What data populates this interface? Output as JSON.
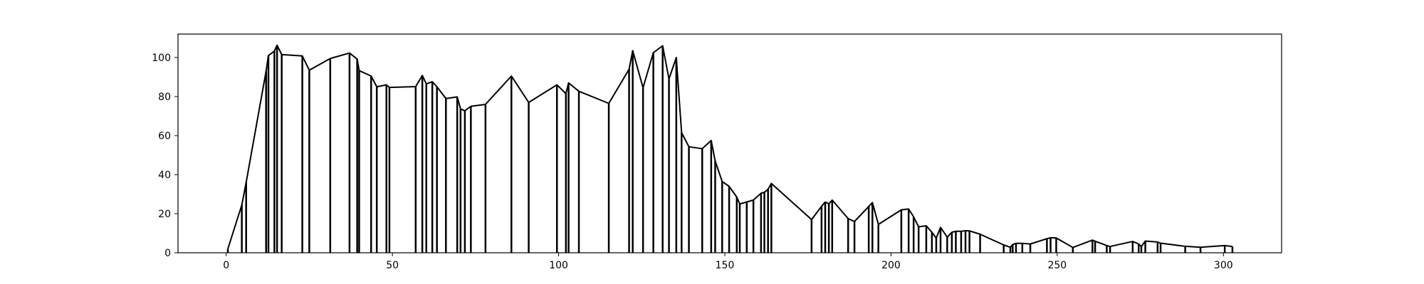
{
  "chart_data": {
    "type": "line",
    "title": "",
    "xlabel": "",
    "ylabel": "",
    "xlim": [
      -14.5,
      317.5
    ],
    "ylim": [
      0,
      112
    ],
    "x_ticks": [
      0,
      50,
      100,
      150,
      200,
      250,
      300
    ],
    "x_tick_labels": [
      "0",
      "50",
      "100",
      "150",
      "200",
      "250",
      "300"
    ],
    "y_ticks": [
      0,
      20,
      40,
      60,
      80,
      100
    ],
    "y_tick_labels": [
      "0",
      "20",
      "40",
      "60",
      "80",
      "100"
    ],
    "grid": false,
    "legend": false,
    "style": "line with vertical drop lines to zero at each point",
    "color": "#000000",
    "x": [
      0.5,
      4.7,
      6,
      12,
      12.7,
      14.5,
      15.3,
      16.7,
      22.9,
      25,
      31.3,
      37.1,
      39.4,
      40,
      43.6,
      45.3,
      48.2,
      49.1,
      57,
      59,
      60.2,
      62,
      63.4,
      66.1,
      69.5,
      70.5,
      71.8,
      73.6,
      78,
      85.8,
      91,
      99.5,
      102.2,
      103,
      106.1,
      115.1,
      121.2,
      122.3,
      125.4,
      128.5,
      131.3,
      133.2,
      135.4,
      137,
      139.2,
      143.2,
      145.9,
      147.1,
      149.2,
      151.3,
      153.6,
      154.5,
      156.6,
      158.6,
      160.9,
      161.9,
      163,
      164,
      176.1,
      179.1,
      180.2,
      181.3,
      182.3,
      187.1,
      189,
      193.3,
      194.4,
      196.2,
      203.1,
      205.3,
      206.8,
      208.3,
      210.6,
      212.3,
      213.6,
      214.9,
      216.9,
      218.3,
      219.5,
      221.1,
      222.4,
      223.6,
      226.8,
      233.9,
      235.9,
      236.6,
      237.6,
      239.5,
      241.9,
      246.9,
      248,
      249.7,
      254.7,
      260.6,
      261.4,
      264.9,
      265.9,
      272.7,
      274.5,
      275.3,
      276.5,
      280.2,
      281.1,
      288.5,
      293.1,
      300.4,
      302.7
    ],
    "y": [
      2,
      24.5,
      36,
      93,
      101,
      103.3,
      106.3,
      101.5,
      100.8,
      93.5,
      99.5,
      102.3,
      99.2,
      93.3,
      90.5,
      85,
      86,
      84.7,
      85.1,
      90.8,
      86.5,
      87.6,
      85,
      79,
      79.8,
      73.7,
      72.7,
      75,
      76,
      90.5,
      77,
      86,
      81.5,
      87,
      82.7,
      76.5,
      94,
      103.5,
      84.5,
      102.5,
      106,
      89,
      100,
      61.5,
      54.3,
      53.3,
      57.5,
      47,
      36.5,
      34,
      28.5,
      25,
      26,
      27,
      30.5,
      31,
      32.5,
      35.5,
      17,
      23.8,
      26,
      25,
      27,
      17.5,
      16,
      23.7,
      25.7,
      14.5,
      22,
      22.4,
      18.4,
      13.3,
      13.8,
      10.5,
      7.5,
      13,
      8,
      10.5,
      11,
      11,
      11.3,
      11.2,
      9.5,
      4,
      2.8,
      4.2,
      4.8,
      4.8,
      4.5,
      7.2,
      7.7,
      7.6,
      2.7,
      6.5,
      5.9,
      3.7,
      3.2,
      5.8,
      4.5,
      3.2,
      6,
      5.5,
      4.9,
      3.3,
      2.8,
      3.7,
      3.2
    ]
  }
}
